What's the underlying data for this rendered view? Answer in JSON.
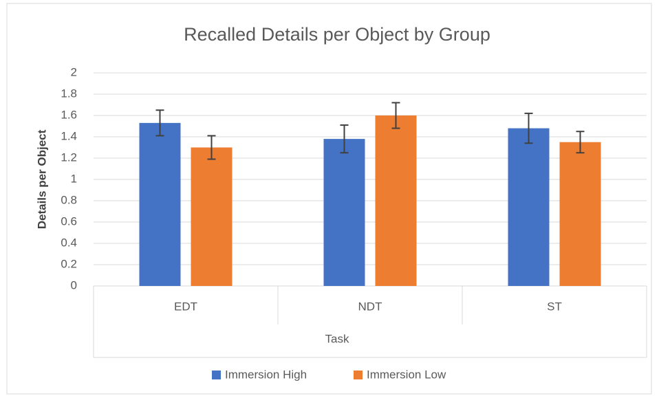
{
  "chart_data": {
    "type": "bar",
    "title": "Recalled Details per Object by Group",
    "x_label": "Task",
    "y_label": "Details per Object",
    "categories": [
      "EDT",
      "NDT",
      "ST"
    ],
    "series": [
      {
        "name": "Immersion High",
        "color": "#4472c4",
        "values": [
          1.53,
          1.38,
          1.48
        ],
        "errors": [
          0.12,
          0.13,
          0.14
        ]
      },
      {
        "name": "Immersion Low",
        "color": "#ed7d31",
        "values": [
          1.3,
          1.6,
          1.35
        ],
        "errors": [
          0.11,
          0.12,
          0.1
        ]
      }
    ],
    "ylim": [
      0,
      2
    ],
    "yticks": [
      0,
      0.2,
      0.4,
      0.6,
      0.8,
      1,
      1.2,
      1.4,
      1.6,
      1.8,
      2
    ],
    "grid": true,
    "legend": "bottom"
  }
}
